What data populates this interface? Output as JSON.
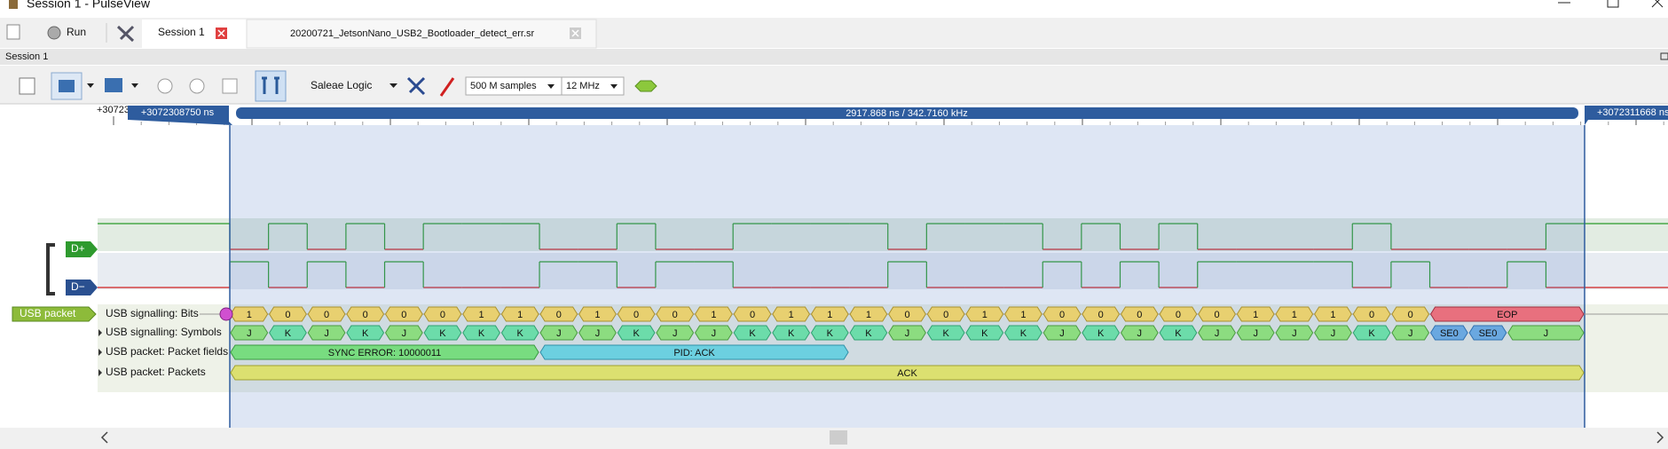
{
  "window": {
    "title": "Session 1 - PulseView"
  },
  "tabs": {
    "run": "Run",
    "session": "Session 1",
    "file": "20200721_JetsonNano_USB2_Bootloader_detect_err.sr"
  },
  "dock": {
    "title": "Session 1"
  },
  "toolbar": {
    "device": "Saleae Logic",
    "samples": "500 M samples",
    "rate": "12 MHz"
  },
  "ruler": {
    "left_edge": "+30723",
    "cursor_a": "+3072308750 ns",
    "cursor_b": "+3072311668 ns",
    "span": "2917.868 ns / 342.7160 kHz"
  },
  "channels": [
    {
      "name": "D+"
    },
    {
      "name": "D−"
    }
  ],
  "decoder": {
    "name": "USB packet",
    "rows": [
      {
        "label": "USB signalling: Bits",
        "items": [
          "1",
          "0",
          "0",
          "0",
          "0",
          "0",
          "1",
          "1",
          "0",
          "1",
          "0",
          "0",
          "1",
          "0",
          "1",
          "1",
          "1",
          "0",
          "0",
          "1",
          "1",
          "0",
          "0",
          "0",
          "0",
          "0",
          "1",
          "1",
          "1",
          "0",
          "0",
          "EOP"
        ]
      },
      {
        "label": "USB signalling: Symbols",
        "items": [
          "J",
          "K",
          "J",
          "K",
          "J",
          "K",
          "K",
          "K",
          "J",
          "J",
          "K",
          "J",
          "J",
          "K",
          "K",
          "K",
          "K",
          "J",
          "K",
          "K",
          "K",
          "J",
          "K",
          "J",
          "K",
          "J",
          "J",
          "J",
          "J",
          "K",
          "J",
          "SE0",
          "SE0",
          "J"
        ]
      },
      {
        "label": "USB packet: Packet fields",
        "items": [
          "SYNC ERROR: 10000011",
          "PID: ACK"
        ]
      },
      {
        "label": "USB packet: Packets",
        "items": [
          "ACK"
        ]
      }
    ]
  }
}
